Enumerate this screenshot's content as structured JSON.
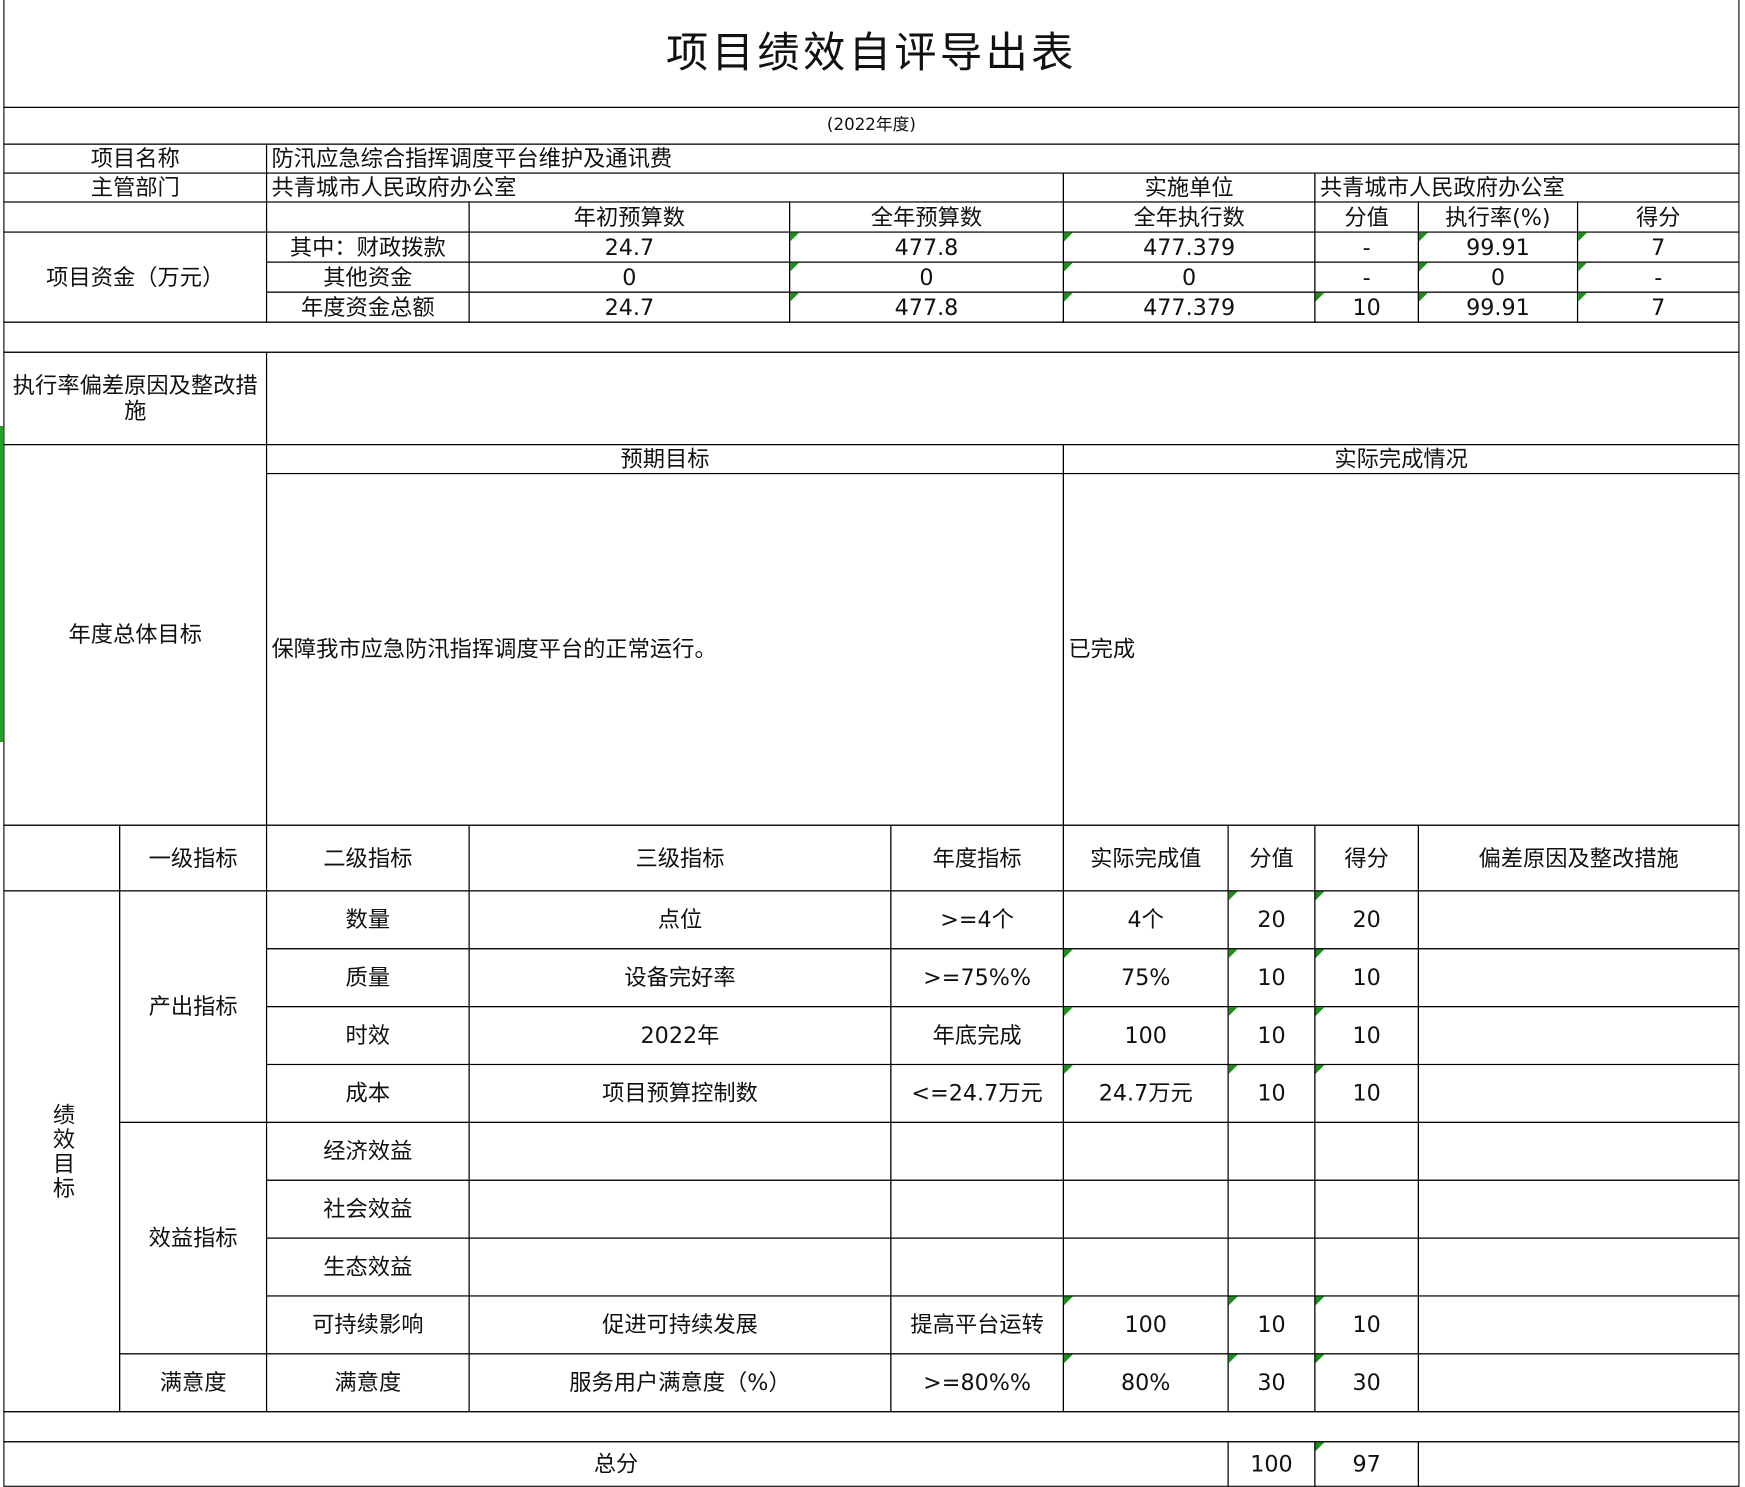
{
  "title": "项目绩效自评导出表",
  "year": "(2022年度)",
  "project": {
    "name_label": "项目名称",
    "name": "防汛应急综合指挥调度平台维护及通讯费",
    "dept_label": "主管部门",
    "dept": "共青城市人民政府办公室",
    "impl_label": "实施单位",
    "impl": "共青城市人民政府办公室"
  },
  "funds": {
    "label": "项目资金（万元）",
    "headers": [
      "年初预算数",
      "全年预算数",
      "全年执行数",
      "分值",
      "执行率(%)",
      "得分"
    ],
    "rows": [
      {
        "label": "其中：财政拨款",
        "values": [
          "24.7",
          "477.8",
          "477.379",
          "-",
          "99.91",
          "7"
        ]
      },
      {
        "label": "其他资金",
        "values": [
          "0",
          "0",
          "0",
          "-",
          "0",
          "-"
        ]
      },
      {
        "label": "年度资金总额",
        "values": [
          "24.7",
          "477.8",
          "477.379",
          "10",
          "99.91",
          "7"
        ]
      }
    ]
  },
  "deviation_label": "执行率偏差原因及整改措施",
  "goals": {
    "label": "年度总体目标",
    "expected_header": "预期目标",
    "actual_header": "实际完成情况",
    "expected": "保障我市应急防汛指挥调度平台的正常运行。",
    "actual": "已完成"
  },
  "indicators": {
    "perf_label": "绩效目标",
    "headers": [
      "一级指标",
      "二级指标",
      "三级指标",
      "年度指标",
      "实际完成值",
      "分值",
      "得分",
      "偏差原因及整改措施"
    ],
    "groups": [
      {
        "label": "产出指标",
        "rows": [
          {
            "level2": "数量",
            "level3": "点位",
            "target": ">=4个",
            "actual": "4个",
            "weight": "20",
            "score": "20",
            "note": ""
          },
          {
            "level2": "质量",
            "level3": "设备完好率",
            "target": ">=75%%",
            "actual": "75%",
            "weight": "10",
            "score": "10",
            "note": ""
          },
          {
            "level2": "时效",
            "level3": "2022年",
            "target": "年底完成",
            "actual": "100",
            "weight": "10",
            "score": "10",
            "note": ""
          },
          {
            "level2": "成本",
            "level3": "项目预算控制数",
            "target": "<=24.7万元",
            "actual": "24.7万元",
            "weight": "10",
            "score": "10",
            "note": ""
          }
        ]
      },
      {
        "label": "效益指标",
        "rows": [
          {
            "level2": "经济效益",
            "level3": "",
            "target": "",
            "actual": "",
            "weight": "",
            "score": "",
            "note": ""
          },
          {
            "level2": "社会效益",
            "level3": "",
            "target": "",
            "actual": "",
            "weight": "",
            "score": "",
            "note": ""
          },
          {
            "level2": "生态效益",
            "level3": "",
            "target": "",
            "actual": "",
            "weight": "",
            "score": "",
            "note": ""
          },
          {
            "level2": "可持续影响",
            "level3": "促进可持续发展",
            "target": "提高平台运转",
            "actual": "100",
            "weight": "10",
            "score": "10",
            "note": ""
          }
        ]
      },
      {
        "label": "满意度",
        "rows": [
          {
            "level2": "满意度",
            "level3": "服务用户满意度（%）",
            "target": ">=80%%",
            "actual": "80%",
            "weight": "30",
            "score": "30",
            "note": ""
          }
        ]
      }
    ]
  },
  "total": {
    "label": "总分",
    "weight": "100",
    "score": "97"
  },
  "colors": {
    "comment_marker": "#1a8f1a",
    "grid": "#000000"
  }
}
